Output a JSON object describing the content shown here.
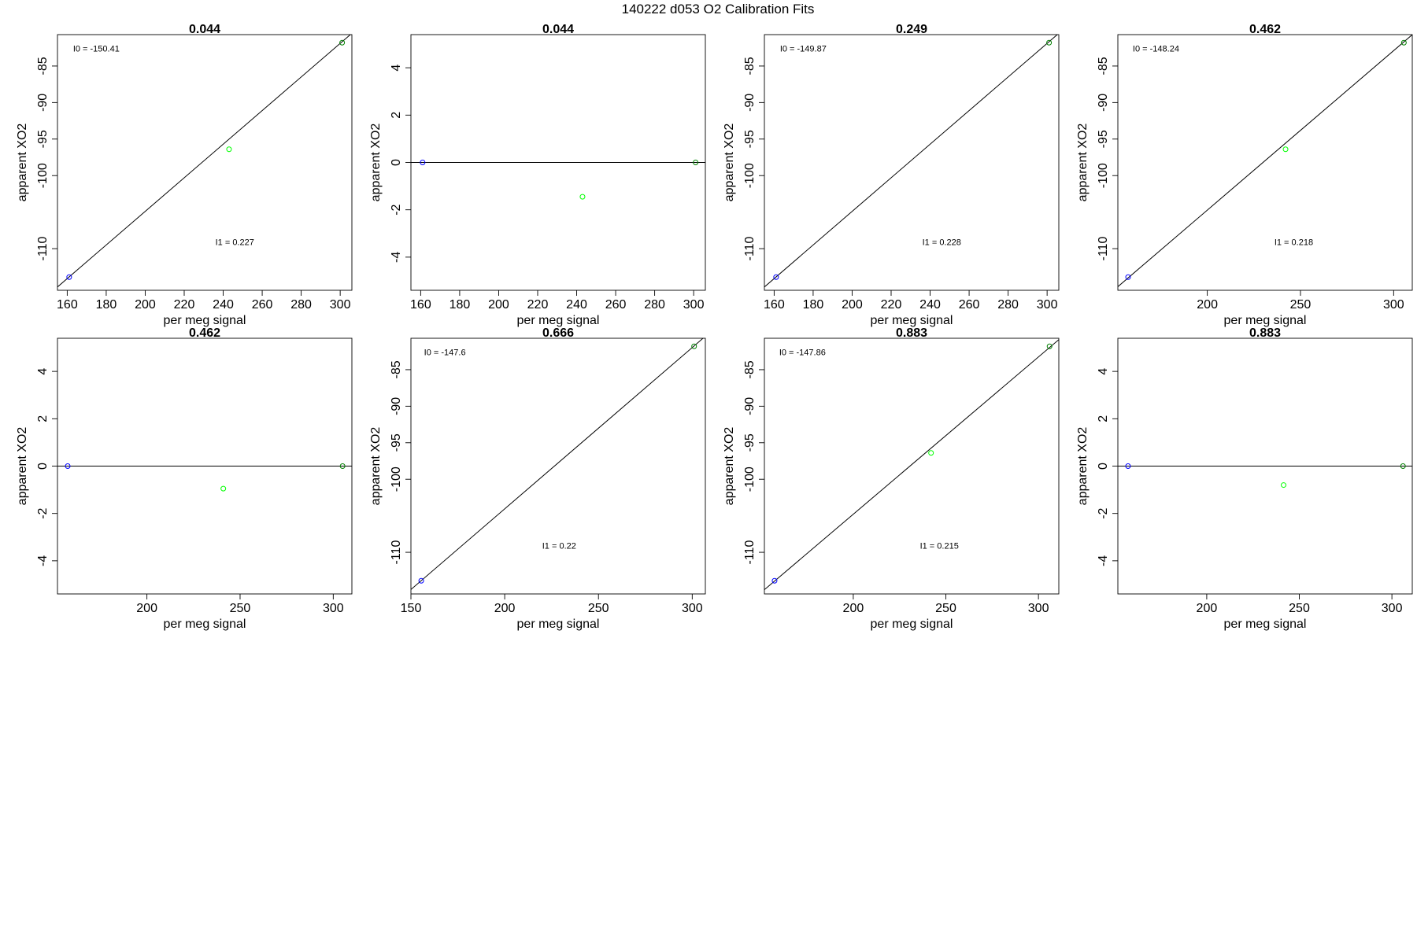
{
  "figure": {
    "title": "140222   d053   O2 Calibration Fits"
  },
  "chart_data": [
    {
      "type": "scatter",
      "title": "0.044",
      "xlabel": "per meg signal",
      "ylabel": "apparent XO2",
      "xlim": [
        155,
        306
      ],
      "ylim": [
        -115.7,
        -80.7
      ],
      "xticks": [
        160,
        180,
        200,
        220,
        240,
        260,
        280,
        300
      ],
      "yticks": [
        -85,
        -90,
        -95,
        -100,
        -110
      ],
      "points": [
        {
          "x": 161,
          "y": -113.9,
          "color": "#0000ff"
        },
        {
          "x": 243,
          "y": -96.4,
          "color": "#00ff00"
        },
        {
          "x": 301,
          "y": -81.8,
          "color": "#008000"
        }
      ],
      "line": [
        [
          150,
          -116.4
        ],
        [
          310,
          -79.6
        ]
      ],
      "annotations": [
        {
          "text": "I0 =  -150.41",
          "x": 163,
          "y": -83
        },
        {
          "text": "I1 =  0.227",
          "x": 236,
          "y": -109.5
        }
      ]
    },
    {
      "type": "scatter",
      "title": "0.044",
      "xlabel": "per meg signal",
      "ylabel": "apparent XO2",
      "xlim": [
        155,
        306
      ],
      "ylim": [
        -5.4,
        5.4
      ],
      "xticks": [
        160,
        180,
        200,
        220,
        240,
        260,
        280,
        300
      ],
      "yticks": [
        4,
        2,
        0,
        -2,
        -4
      ],
      "points": [
        {
          "x": 161,
          "y": 0,
          "color": "#0000ff"
        },
        {
          "x": 243,
          "y": -1.45,
          "color": "#00ff00"
        },
        {
          "x": 301,
          "y": 0,
          "color": "#008000"
        }
      ],
      "line": [
        [
          150,
          0
        ],
        [
          310,
          0
        ]
      ],
      "annotations": []
    },
    {
      "type": "scatter",
      "title": "0.249",
      "xlabel": "per meg signal",
      "ylabel": "apparent XO2",
      "xlim": [
        155,
        306
      ],
      "ylim": [
        -115.7,
        -80.7
      ],
      "xticks": [
        160,
        180,
        200,
        220,
        240,
        260,
        280,
        300
      ],
      "yticks": [
        -85,
        -90,
        -95,
        -100,
        -110
      ],
      "points": [
        {
          "x": 161,
          "y": -113.9,
          "color": "#0000ff"
        },
        {
          "x": 301,
          "y": -81.8,
          "color": "#008000"
        }
      ],
      "line": [
        [
          150,
          -116.4
        ],
        [
          310,
          -79.6
        ]
      ],
      "annotations": [
        {
          "text": "I0 =  -149.87",
          "x": 163,
          "y": -83
        },
        {
          "text": "I1 =  0.228",
          "x": 236,
          "y": -109.5
        }
      ]
    },
    {
      "type": "scatter",
      "title": "0.462",
      "xlabel": "per meg signal",
      "ylabel": "apparent XO2",
      "xlim": [
        152,
        310
      ],
      "ylim": [
        -115.7,
        -80.7
      ],
      "xticks": [
        200,
        250,
        300
      ],
      "yticks": [
        -85,
        -90,
        -95,
        -100,
        -110
      ],
      "points": [
        {
          "x": 157.5,
          "y": -113.9,
          "color": "#0000ff"
        },
        {
          "x": 242,
          "y": -96.4,
          "color": "#00ff00"
        },
        {
          "x": 305.5,
          "y": -81.8,
          "color": "#008000"
        }
      ],
      "line": [
        [
          147,
          -116.3
        ],
        [
          316,
          -79.4
        ]
      ],
      "annotations": [
        {
          "text": "I0 =  -148.24",
          "x": 160,
          "y": -83
        },
        {
          "text": "I1 =  0.218",
          "x": 236,
          "y": -109.5
        }
      ]
    },
    {
      "type": "scatter",
      "title": "0.462",
      "xlabel": "per meg signal",
      "ylabel": "apparent XO2",
      "xlim": [
        152,
        310
      ],
      "ylim": [
        -5.4,
        5.4
      ],
      "xticks": [
        200,
        250,
        300
      ],
      "yticks": [
        4,
        2,
        0,
        -2,
        -4
      ],
      "points": [
        {
          "x": 157.5,
          "y": 0,
          "color": "#0000ff"
        },
        {
          "x": 241,
          "y": -0.95,
          "color": "#00ff00"
        },
        {
          "x": 305,
          "y": 0,
          "color": "#008000"
        }
      ],
      "line": [
        [
          147,
          0
        ],
        [
          316,
          0
        ]
      ],
      "annotations": []
    },
    {
      "type": "scatter",
      "title": "0.666",
      "xlabel": "per meg signal",
      "ylabel": "apparent XO2",
      "xlim": [
        150,
        307
      ],
      "ylim": [
        -115.7,
        -80.7
      ],
      "xticks": [
        150,
        200,
        250,
        300
      ],
      "yticks": [
        -85,
        -90,
        -95,
        -100,
        -110
      ],
      "points": [
        {
          "x": 155.5,
          "y": -113.9,
          "color": "#0000ff"
        },
        {
          "x": 301,
          "y": -81.8,
          "color": "#008000"
        }
      ],
      "line": [
        [
          145,
          -116.2
        ],
        [
          313,
          -79.1
        ]
      ],
      "annotations": [
        {
          "text": "I0 =  -147.6",
          "x": 157,
          "y": -83
        },
        {
          "text": "I1 =  0.22",
          "x": 220,
          "y": -109.5
        }
      ]
    },
    {
      "type": "scatter",
      "title": "0.883",
      "xlabel": "per meg signal",
      "ylabel": "apparent XO2",
      "xlim": [
        152,
        311
      ],
      "ylim": [
        -115.7,
        -80.7
      ],
      "xticks": [
        200,
        250,
        300
      ],
      "yticks": [
        -85,
        -90,
        -95,
        -100,
        -110
      ],
      "points": [
        {
          "x": 157.5,
          "y": -113.9,
          "color": "#0000ff"
        },
        {
          "x": 242,
          "y": -96.4,
          "color": "#00ff00"
        },
        {
          "x": 306,
          "y": -81.8,
          "color": "#008000"
        }
      ],
      "line": [
        [
          147,
          -116.2
        ],
        [
          317,
          -79.6
        ]
      ],
      "annotations": [
        {
          "text": "I0 =  -147.86",
          "x": 160,
          "y": -83
        },
        {
          "text": "I1 =  0.215",
          "x": 236,
          "y": -109.5
        }
      ]
    },
    {
      "type": "scatter",
      "title": "0.883",
      "xlabel": "per meg signal",
      "ylabel": "apparent XO2",
      "xlim": [
        152,
        311
      ],
      "ylim": [
        -5.4,
        5.4
      ],
      "xticks": [
        200,
        250,
        300
      ],
      "yticks": [
        4,
        2,
        0,
        -2,
        -4
      ],
      "points": [
        {
          "x": 157.5,
          "y": 0,
          "color": "#0000ff"
        },
        {
          "x": 241.5,
          "y": -0.8,
          "color": "#00ff00"
        },
        {
          "x": 306,
          "y": 0,
          "color": "#008000"
        }
      ],
      "line": [
        [
          147,
          0
        ],
        [
          317,
          0
        ]
      ],
      "annotations": []
    }
  ]
}
